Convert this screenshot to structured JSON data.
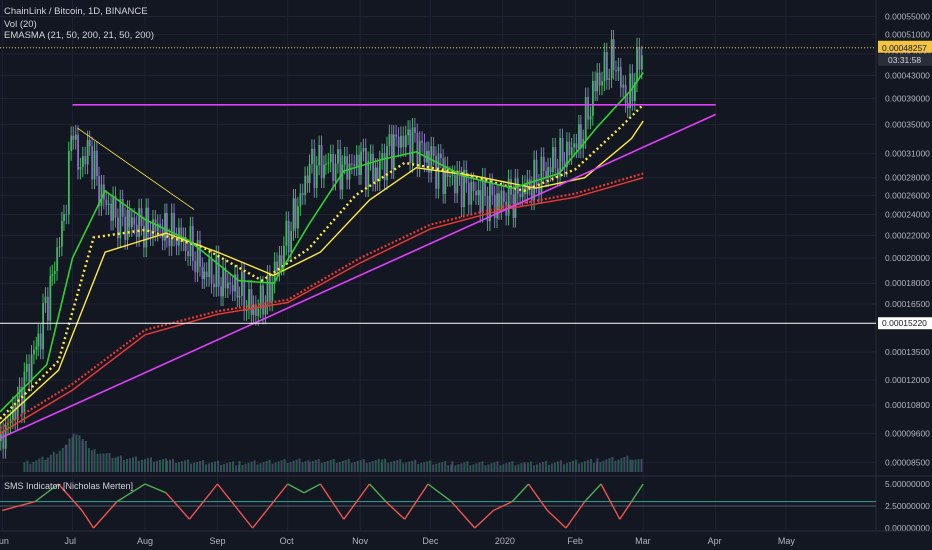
{
  "header": {
    "symbol": "ChainLink / Bitcoin, 1D, BINANCE",
    "volume": "Vol (20)",
    "ema": "EMASMA (21, 50, 200, 21, 50, 200)",
    "sms": "SMS Indicator [Nicholas Merten]"
  },
  "colors": {
    "background": "#131722",
    "grid": "#1f2330",
    "text": "#b2b5be",
    "up": "#26a69a",
    "candle_up": "#3eb95c",
    "candle_down": "#8e6ac8",
    "trendline": "#e040fb",
    "ema_green": "#2ed12e",
    "sma_yellow": "#ffeb3b",
    "ma_red": "#e53935",
    "price_line": "#f5c542",
    "white_line": "#ffffff",
    "sms_green": "#4caf50",
    "sms_red": "#f05350",
    "sms_teal": "#26a69a"
  },
  "price_axis": {
    "ticks": [
      "0.00055000",
      "0.00051000",
      "0.00047000",
      "0.00043000",
      "0.00039000",
      "0.00035000",
      "0.00031000",
      "0.00028000",
      "0.00026000",
      "0.00024000",
      "0.00022000",
      "0.00020000",
      "0.00018000",
      "0.00016500",
      "0.00013500",
      "0.00012000",
      "0.00010800",
      "0.00009600",
      "0.00008500"
    ],
    "current_price": "0.00048257",
    "countdown": "03:31:58",
    "level_label": "0.00015220"
  },
  "sms_axis": {
    "ticks": [
      "5.00000000",
      "2.50000000",
      "0.00000000"
    ]
  },
  "time_axis": {
    "labels": [
      "Jun",
      "Jul",
      "Aug",
      "Sep",
      "Oct",
      "Nov",
      "Dec",
      "2020",
      "Feb",
      "Mar",
      "Apr",
      "May"
    ]
  },
  "chart_data": {
    "type": "line",
    "scale": "log",
    "x_unit": "month",
    "close": [
      [
        "2019-05-31",
        9.3e-05
      ],
      [
        "2019-06-08",
        0.000112
      ],
      [
        "2019-06-16",
        0.000143
      ],
      [
        "2019-06-22",
        0.000185
      ],
      [
        "2019-06-27",
        0.000238
      ],
      [
        "2019-07-01",
        0.000355
      ],
      [
        "2019-07-03",
        0.00029
      ],
      [
        "2019-07-08",
        0.00032
      ],
      [
        "2019-07-12",
        0.000265
      ],
      [
        "2019-07-18",
        0.00024
      ],
      [
        "2019-07-25",
        0.000232
      ],
      [
        "2019-08-02",
        0.000228
      ],
      [
        "2019-08-10",
        0.000226
      ],
      [
        "2019-08-18",
        0.000215
      ],
      [
        "2019-08-26",
        0.00019
      ],
      [
        "2019-09-03",
        0.000182
      ],
      [
        "2019-09-10",
        0.000175
      ],
      [
        "2019-09-16",
        0.00016
      ],
      [
        "2019-09-22",
        0.000172
      ],
      [
        "2019-09-28",
        0.000205
      ],
      [
        "2019-10-04",
        0.00024
      ],
      [
        "2019-10-10",
        0.000292
      ],
      [
        "2019-10-17",
        0.0003
      ],
      [
        "2019-10-24",
        0.00029
      ],
      [
        "2019-11-01",
        0.0003
      ],
      [
        "2019-11-08",
        0.000288
      ],
      [
        "2019-11-15",
        0.000325
      ],
      [
        "2019-11-22",
        0.00033
      ],
      [
        "2019-11-30",
        0.000305
      ],
      [
        "2019-12-07",
        0.000285
      ],
      [
        "2019-12-14",
        0.000272
      ],
      [
        "2019-12-22",
        0.00026
      ],
      [
        "2019-12-30",
        0.000252
      ],
      [
        "2020-01-06",
        0.000262
      ],
      [
        "2020-01-13",
        0.000272
      ],
      [
        "2020-01-20",
        0.000295
      ],
      [
        "2020-01-27",
        0.000305
      ],
      [
        "2020-02-03",
        0.000335
      ],
      [
        "2020-02-10",
        0.00042
      ],
      [
        "2020-02-17",
        0.00046
      ],
      [
        "2020-02-23",
        0.00038
      ],
      [
        "2020-02-27",
        0.00045
      ],
      [
        "2020-03-01",
        0.000483
      ]
    ],
    "ema21": [
      [
        "2019-05-31",
        0.000105
      ],
      [
        "2019-06-20",
        0.000128
      ],
      [
        "2019-07-01",
        0.0002
      ],
      [
        "2019-07-15",
        0.000265
      ],
      [
        "2019-08-01",
        0.000235
      ],
      [
        "2019-08-20",
        0.000215
      ],
      [
        "2019-09-10",
        0.000182
      ],
      [
        "2019-09-25",
        0.00018
      ],
      [
        "2019-10-10",
        0.00023
      ],
      [
        "2019-10-25",
        0.000288
      ],
      [
        "2019-11-10",
        0.000302
      ],
      [
        "2019-11-25",
        0.000312
      ],
      [
        "2019-12-15",
        0.000282
      ],
      [
        "2020-01-05",
        0.000268
      ],
      [
        "2020-01-25",
        0.000285
      ],
      [
        "2020-02-10",
        0.000345
      ],
      [
        "2020-02-25",
        0.000405
      ],
      [
        "2020-03-01",
        0.000435
      ]
    ],
    "ema50": [
      [
        "2019-05-31",
        0.000102
      ],
      [
        "2019-06-25",
        0.00013
      ],
      [
        "2019-07-10",
        0.000218
      ],
      [
        "2019-08-01",
        0.000225
      ],
      [
        "2019-08-25",
        0.00021
      ],
      [
        "2019-09-20",
        0.000182
      ],
      [
        "2019-10-10",
        0.000208
      ],
      [
        "2019-10-30",
        0.00026
      ],
      [
        "2019-11-20",
        0.000298
      ],
      [
        "2019-12-15",
        0.000285
      ],
      [
        "2020-01-10",
        0.000265
      ],
      [
        "2020-02-01",
        0.00029
      ],
      [
        "2020-02-20",
        0.000345
      ],
      [
        "2020-03-01",
        0.00038
      ]
    ],
    "sma50": [
      [
        "2019-05-31",
        0.0001
      ],
      [
        "2019-06-25",
        0.000125
      ],
      [
        "2019-07-15",
        0.000205
      ],
      [
        "2019-08-10",
        0.000222
      ],
      [
        "2019-09-01",
        0.000205
      ],
      [
        "2019-09-25",
        0.000186
      ],
      [
        "2019-10-15",
        0.000205
      ],
      [
        "2019-11-05",
        0.000255
      ],
      [
        "2019-11-25",
        0.000292
      ],
      [
        "2019-12-20",
        0.000282
      ],
      [
        "2020-01-15",
        0.000268
      ],
      [
        "2020-02-05",
        0.00028
      ],
      [
        "2020-02-25",
        0.00033
      ],
      [
        "2020-03-01",
        0.000355
      ]
    ],
    "ema200": [
      [
        "2019-05-31",
        9.8e-05
      ],
      [
        "2019-07-01",
        0.000118
      ],
      [
        "2019-08-01",
        0.000148
      ],
      [
        "2019-09-01",
        0.00016
      ],
      [
        "2019-10-01",
        0.000168
      ],
      [
        "2019-11-01",
        0.0002
      ],
      [
        "2019-12-01",
        0.00023
      ],
      [
        "2020-01-01",
        0.000248
      ],
      [
        "2020-02-01",
        0.000262
      ],
      [
        "2020-03-01",
        0.000285
      ]
    ],
    "sma200": [
      [
        "2019-05-31",
        9.6e-05
      ],
      [
        "2019-07-01",
        0.000115
      ],
      [
        "2019-08-01",
        0.000145
      ],
      [
        "2019-09-01",
        0.000158
      ],
      [
        "2019-10-01",
        0.000166
      ],
      [
        "2019-11-01",
        0.000196
      ],
      [
        "2019-12-01",
        0.000226
      ],
      [
        "2020-01-01",
        0.000245
      ],
      [
        "2020-02-01",
        0.000258
      ],
      [
        "2020-03-01",
        0.00028
      ]
    ],
    "resistance": [
      [
        "2019-07-01",
        0.00038
      ],
      [
        "2020-04-01",
        0.00038
      ]
    ],
    "support_trendline": [
      [
        "2019-05-31",
        9.4e-05
      ],
      [
        "2020-04-01",
        0.000365
      ]
    ],
    "falling_line": [
      [
        "2019-07-03",
        0.000345
      ],
      [
        "2019-08-22",
        0.000245
      ]
    ],
    "level": 0.0001522,
    "volume": [
      [
        "2019-06-10",
        1
      ],
      [
        "2019-06-20",
        2
      ],
      [
        "2019-06-28",
        4
      ],
      [
        "2019-07-01",
        6
      ],
      [
        "2019-07-05",
        5
      ],
      [
        "2019-07-10",
        3
      ],
      [
        "2019-07-20",
        2
      ],
      [
        "2019-08-10",
        1.5
      ],
      [
        "2019-09-10",
        1
      ],
      [
        "2019-10-10",
        1.5
      ],
      [
        "2019-11-10",
        1.5
      ],
      [
        "2019-12-10",
        1
      ],
      [
        "2020-01-10",
        1
      ],
      [
        "2020-02-10",
        1.5
      ],
      [
        "2020-02-25",
        2
      ],
      [
        "2020-03-01",
        1.5
      ]
    ],
    "sms": [
      [
        "2019-06-01",
        2
      ],
      [
        "2019-06-15",
        3
      ],
      [
        "2019-06-25",
        5
      ],
      [
        "2019-07-05",
        2
      ],
      [
        "2019-07-10",
        0
      ],
      [
        "2019-07-20",
        3
      ],
      [
        "2019-08-01",
        5
      ],
      [
        "2019-08-10",
        4
      ],
      [
        "2019-08-20",
        1
      ],
      [
        "2019-09-01",
        5
      ],
      [
        "2019-09-10",
        2
      ],
      [
        "2019-09-16",
        0
      ],
      [
        "2019-09-22",
        2
      ],
      [
        "2019-10-01",
        5
      ],
      [
        "2019-10-08",
        4
      ],
      [
        "2019-10-15",
        5
      ],
      [
        "2019-10-25",
        1
      ],
      [
        "2019-11-05",
        5
      ],
      [
        "2019-11-12",
        3
      ],
      [
        "2019-11-20",
        1
      ],
      [
        "2019-11-30",
        5
      ],
      [
        "2019-12-10",
        3
      ],
      [
        "2019-12-20",
        0
      ],
      [
        "2019-12-28",
        2
      ],
      [
        "2020-01-05",
        3
      ],
      [
        "2020-01-12",
        5
      ],
      [
        "2020-01-20",
        2
      ],
      [
        "2020-01-28",
        0
      ],
      [
        "2020-02-05",
        3
      ],
      [
        "2020-02-12",
        5
      ],
      [
        "2020-02-20",
        1
      ],
      [
        "2020-02-25",
        3
      ],
      [
        "2020-03-01",
        5
      ]
    ],
    "sms_levels": [
      2.5,
      3
    ]
  }
}
